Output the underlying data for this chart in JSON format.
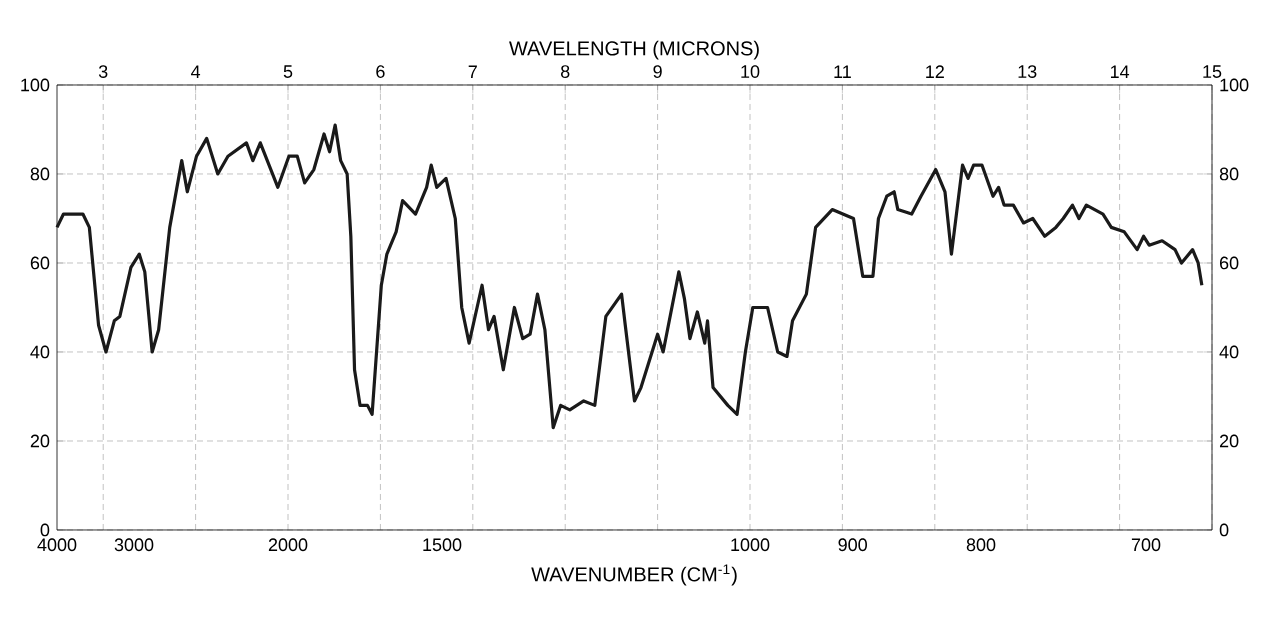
{
  "chart_data": {
    "type": "line",
    "xlabel": "WAVELENGTH (MICRONS)",
    "xlim": [
      2.5,
      15
    ],
    "xticks": [
      3,
      4,
      5,
      6,
      7,
      8,
      9,
      10,
      11,
      12,
      13,
      14,
      15
    ],
    "ylim": [
      0,
      100
    ],
    "yticks": [
      0,
      20,
      40,
      60,
      80,
      100
    ],
    "y2lim": [
      0,
      100
    ],
    "y2ticks": [
      0,
      20,
      40,
      60,
      80,
      100
    ],
    "grid": true,
    "color": "#1a1a1a",
    "line_style": "solid",
    "annotations": [
      "WAVENUMBER (CM$^{-1}$)",
      "4000",
      "3000",
      "2000",
      "1500",
      "1000",
      "900",
      "800",
      "700"
    ],
    "x": [
      2.5,
      2.57,
      2.78,
      2.85,
      2.95,
      3.03,
      3.12,
      3.18,
      3.3,
      3.39,
      3.45,
      3.53,
      3.6,
      3.72,
      3.85,
      3.91,
      4.01,
      4.12,
      4.24,
      4.35,
      4.55,
      4.62,
      4.7,
      4.89,
      5.01,
      5.1,
      5.18,
      5.28,
      5.39,
      5.45,
      5.51,
      5.57,
      5.64,
      5.68,
      5.72,
      5.78,
      5.86,
      5.91,
      6.01,
      6.07,
      6.17,
      6.24,
      6.38,
      6.5,
      6.55,
      6.61,
      6.71,
      6.81,
      6.88,
      6.96,
      7.1,
      7.17,
      7.23,
      7.33,
      7.45,
      7.54,
      7.62,
      7.7,
      7.78,
      7.87,
      7.95,
      8.05,
      8.2,
      8.32,
      8.44,
      8.61,
      8.65,
      8.75,
      8.82,
      9.0,
      9.06,
      9.23,
      9.29,
      9.35,
      9.43,
      9.51,
      9.54,
      9.6,
      9.76,
      9.86,
      9.95,
      10.03,
      10.19,
      10.3,
      10.4,
      10.46,
      10.61,
      10.71,
      10.89,
      11.12,
      11.22,
      11.33,
      11.39,
      11.48,
      11.56,
      11.6,
      11.75,
      11.85,
      12.01,
      12.11,
      12.18,
      12.3,
      12.36,
      12.42,
      12.51,
      12.63,
      12.69,
      12.75,
      12.85,
      12.96,
      13.06,
      13.19,
      13.31,
      13.39,
      13.49,
      13.56,
      13.64,
      13.82,
      13.91,
      14.05,
      14.19,
      14.26,
      14.32,
      14.46,
      14.6,
      14.67,
      14.79,
      14.85,
      14.89
    ],
    "values": [
      68,
      71,
      71,
      68,
      46,
      40,
      47,
      48,
      59,
      62,
      58,
      40,
      45,
      68,
      83,
      76,
      84,
      88,
      80,
      84,
      87,
      83,
      87,
      77,
      84,
      84,
      78,
      81,
      89,
      85,
      91,
      83,
      80,
      66,
      36,
      28,
      28,
      26,
      55,
      62,
      67,
      74,
      71,
      77,
      82,
      77,
      79,
      70,
      50,
      42,
      55,
      45,
      48,
      36,
      50,
      43,
      44,
      53,
      45,
      23,
      28,
      27,
      29,
      28,
      48,
      53,
      46,
      29,
      32,
      44,
      40,
      58,
      52,
      43,
      49,
      42,
      47,
      32,
      28,
      26,
      40,
      50,
      50,
      40,
      39,
      47,
      53,
      68,
      72,
      70,
      57,
      57,
      70,
      75,
      76,
      72,
      71,
      75,
      81,
      76,
      62,
      82,
      79,
      82,
      82,
      75,
      77,
      73,
      73,
      69,
      70,
      66,
      68,
      70,
      73,
      70,
      73,
      71,
      68,
      67,
      63,
      66,
      64,
      65,
      63,
      60,
      63,
      60,
      55
    ]
  }
}
